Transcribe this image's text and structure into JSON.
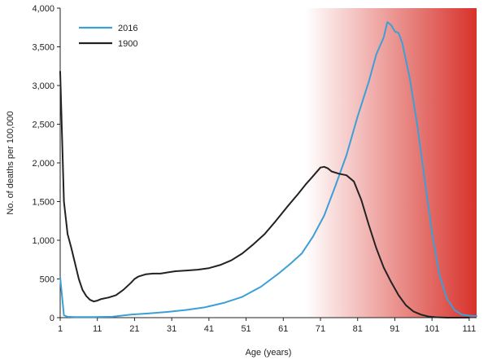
{
  "chart_data": {
    "type": "line",
    "title": "",
    "xlabel": "Age (years)",
    "ylabel": "No. of deaths per 100,000",
    "xlim": [
      1,
      113
    ],
    "ylim": [
      0,
      4000
    ],
    "xticks": [
      1,
      11,
      21,
      31,
      41,
      51,
      61,
      71,
      81,
      91,
      101,
      111
    ],
    "yticks": [
      0,
      500,
      1000,
      1500,
      2000,
      2500,
      3000,
      3500,
      4000
    ],
    "ytick_labels": [
      "0",
      "500",
      "1,000",
      "1,500",
      "2,000",
      "2,500",
      "3,000",
      "3,500",
      "4,000"
    ],
    "grid": false,
    "legend_position": "top-left",
    "background_gradient": {
      "from_age": 67,
      "to_age": 113,
      "color_start": "#ffffff",
      "color_end": "#d8322b"
    },
    "series": [
      {
        "name": "2016",
        "color": "#3d9fd6",
        "points": [
          [
            1,
            520
          ],
          [
            2,
            30
          ],
          [
            3,
            12
          ],
          [
            5,
            8
          ],
          [
            10,
            8
          ],
          [
            15,
            12
          ],
          [
            20,
            40
          ],
          [
            25,
            55
          ],
          [
            30,
            75
          ],
          [
            35,
            100
          ],
          [
            40,
            135
          ],
          [
            45,
            190
          ],
          [
            50,
            270
          ],
          [
            55,
            400
          ],
          [
            60,
            580
          ],
          [
            63,
            700
          ],
          [
            66,
            830
          ],
          [
            69,
            1050
          ],
          [
            72,
            1320
          ],
          [
            75,
            1700
          ],
          [
            78,
            2100
          ],
          [
            81,
            2600
          ],
          [
            84,
            3050
          ],
          [
            86,
            3400
          ],
          [
            88,
            3620
          ],
          [
            89,
            3820
          ],
          [
            90,
            3780
          ],
          [
            91,
            3700
          ],
          [
            92,
            3680
          ],
          [
            93,
            3550
          ],
          [
            95,
            3100
          ],
          [
            97,
            2500
          ],
          [
            99,
            1800
          ],
          [
            101,
            1100
          ],
          [
            103,
            550
          ],
          [
            105,
            250
          ],
          [
            107,
            100
          ],
          [
            109,
            40
          ],
          [
            111,
            25
          ],
          [
            113,
            20
          ]
        ]
      },
      {
        "name": "1900",
        "color": "#222222",
        "points": [
          [
            1,
            3180
          ],
          [
            2,
            1500
          ],
          [
            3,
            1080
          ],
          [
            4,
            900
          ],
          [
            5,
            700
          ],
          [
            6,
            500
          ],
          [
            7,
            360
          ],
          [
            8,
            280
          ],
          [
            9,
            230
          ],
          [
            10,
            210
          ],
          [
            11,
            220
          ],
          [
            12,
            240
          ],
          [
            14,
            260
          ],
          [
            16,
            290
          ],
          [
            18,
            360
          ],
          [
            20,
            450
          ],
          [
            21,
            500
          ],
          [
            22,
            530
          ],
          [
            24,
            560
          ],
          [
            26,
            570
          ],
          [
            28,
            570
          ],
          [
            30,
            585
          ],
          [
            32,
            600
          ],
          [
            35,
            610
          ],
          [
            38,
            620
          ],
          [
            41,
            640
          ],
          [
            44,
            680
          ],
          [
            47,
            740
          ],
          [
            50,
            830
          ],
          [
            53,
            950
          ],
          [
            56,
            1080
          ],
          [
            59,
            1250
          ],
          [
            62,
            1430
          ],
          [
            65,
            1600
          ],
          [
            67,
            1720
          ],
          [
            69,
            1830
          ],
          [
            71,
            1940
          ],
          [
            72,
            1950
          ],
          [
            73,
            1930
          ],
          [
            74,
            1890
          ],
          [
            76,
            1860
          ],
          [
            78,
            1840
          ],
          [
            80,
            1760
          ],
          [
            82,
            1520
          ],
          [
            84,
            1200
          ],
          [
            86,
            900
          ],
          [
            88,
            650
          ],
          [
            90,
            460
          ],
          [
            92,
            290
          ],
          [
            94,
            160
          ],
          [
            96,
            80
          ],
          [
            98,
            40
          ],
          [
            100,
            15
          ],
          [
            102,
            5
          ],
          [
            105,
            0
          ],
          [
            108,
            0
          ],
          [
            111,
            0
          ]
        ]
      }
    ]
  }
}
